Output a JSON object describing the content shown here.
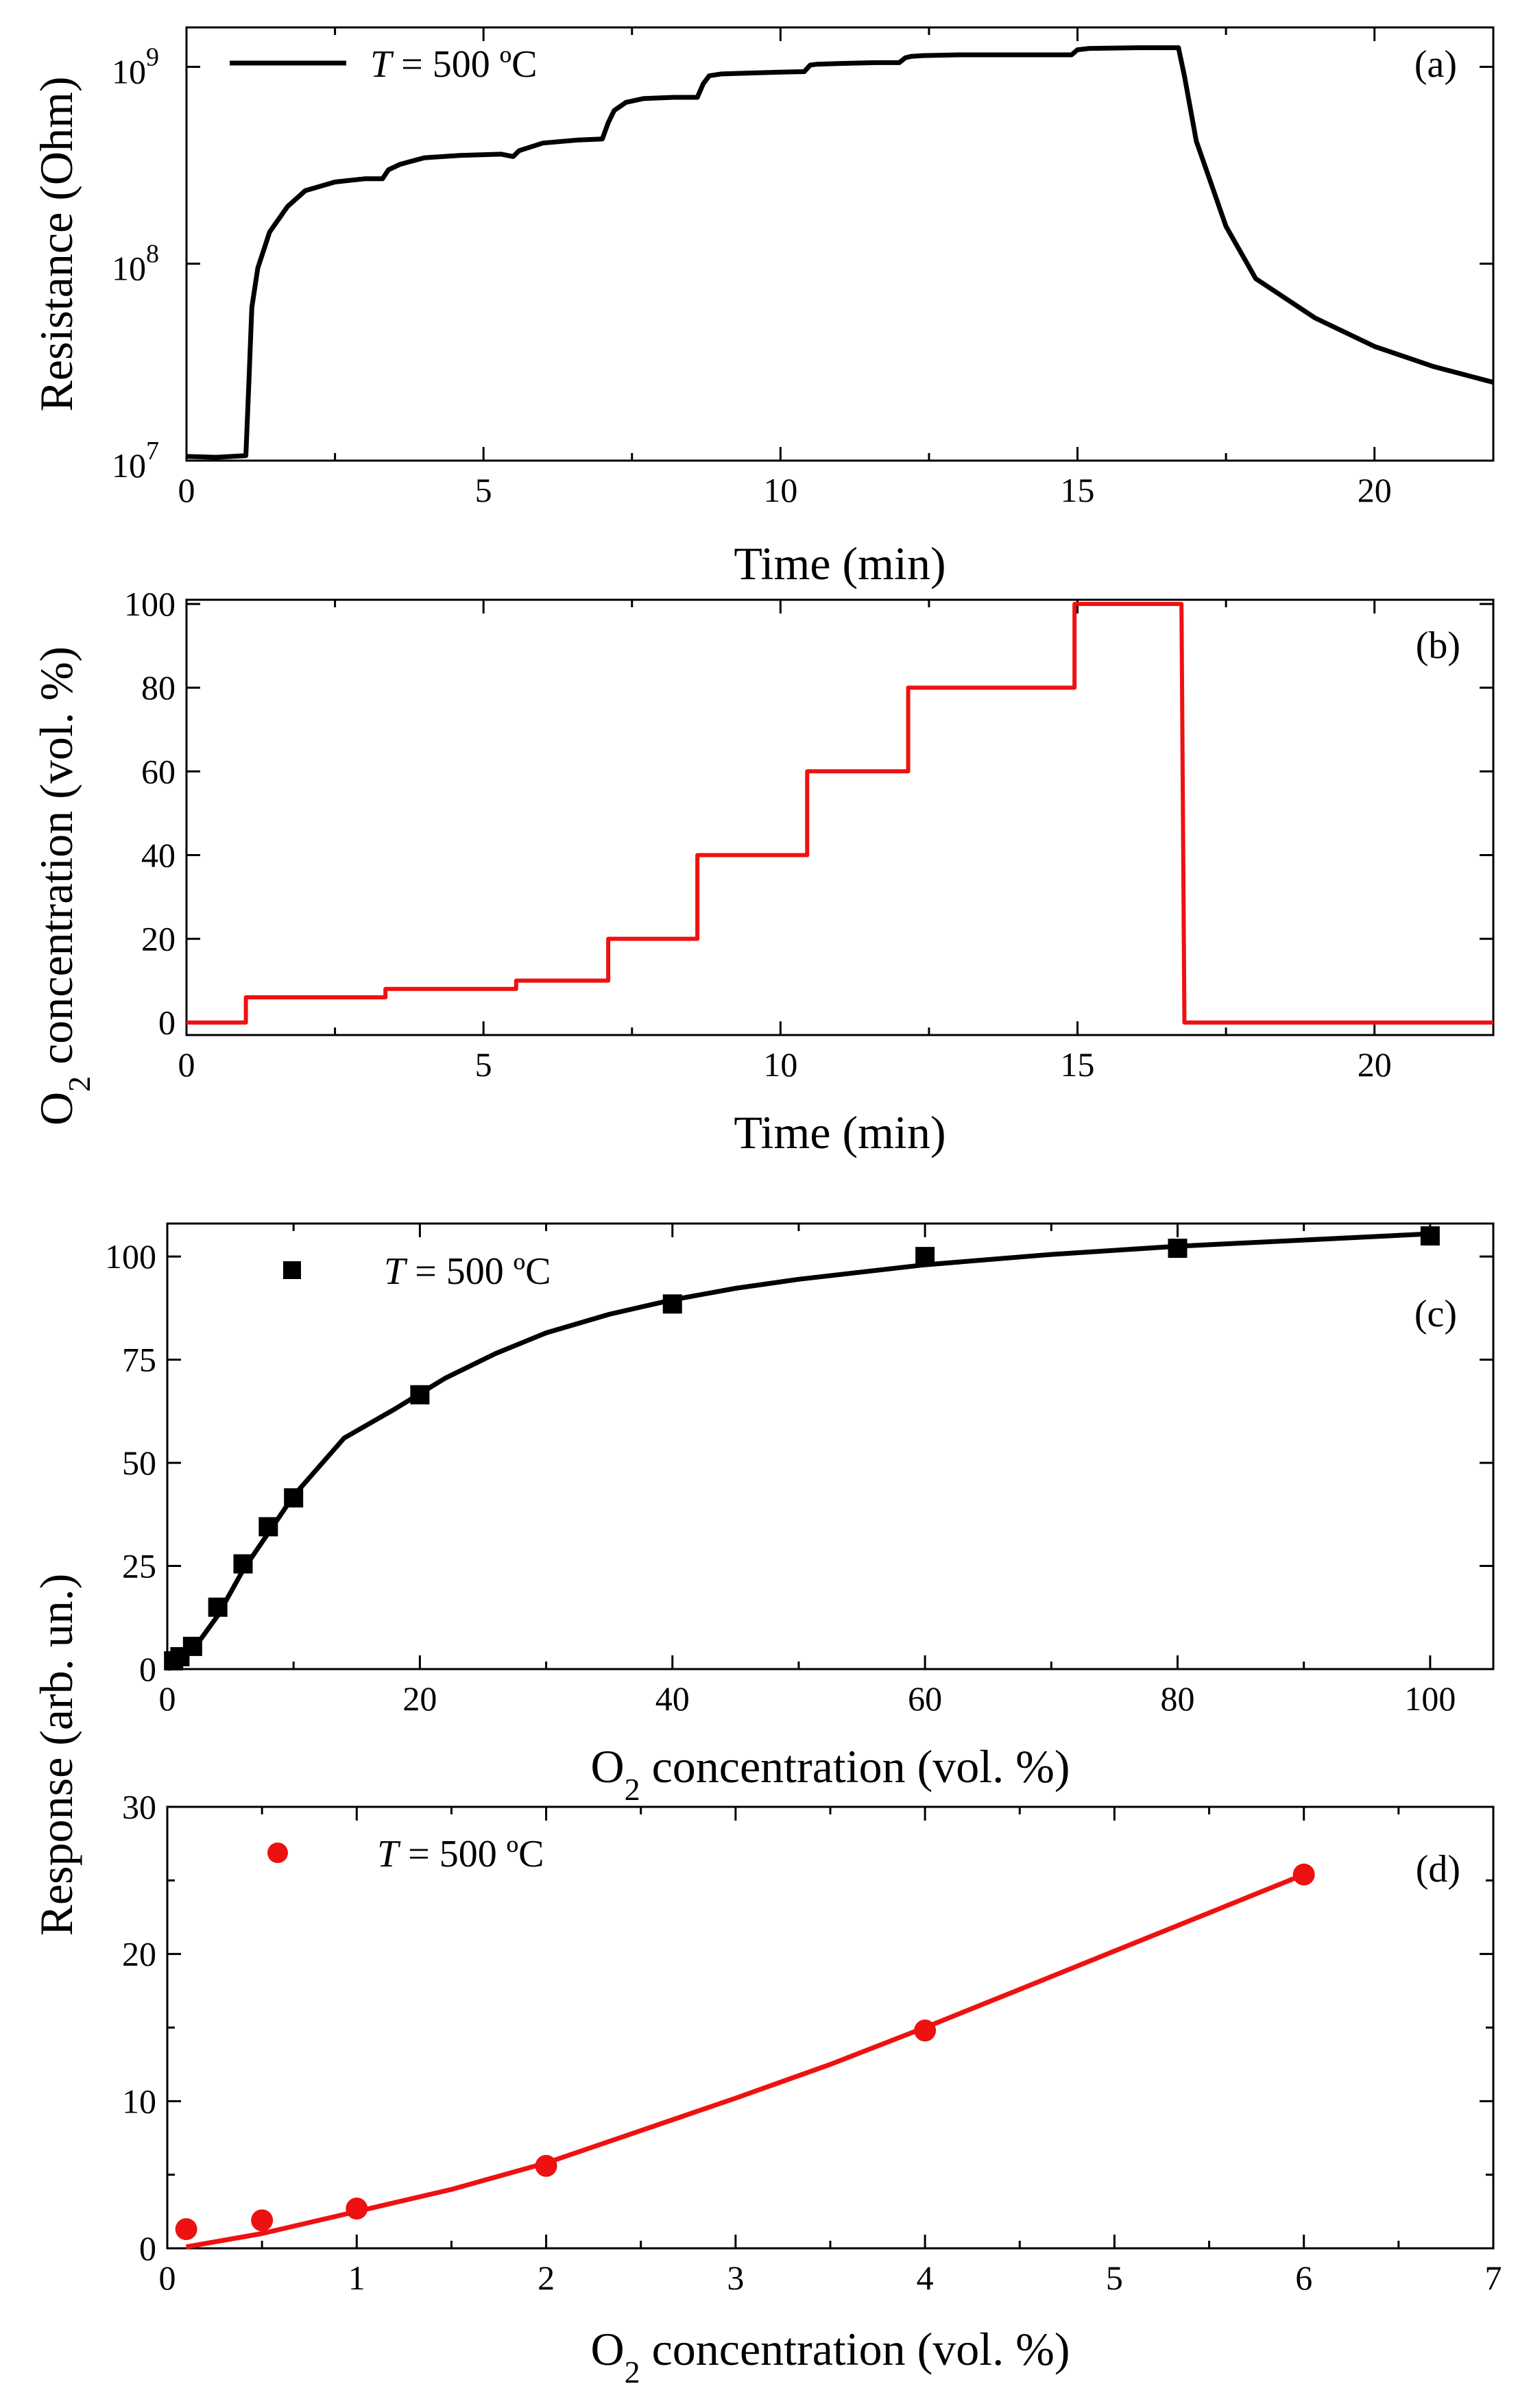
{
  "figure": {
    "legend_temperature": "T = 500 ºC",
    "legend_T": "T",
    "legend_rest": " = 500 ºC"
  },
  "chart_data": [
    {
      "id": "a",
      "type": "line",
      "panel_label": "(a)",
      "xlabel": "Time (min)",
      "ylabel": "Resistance (Ohm)",
      "yscale": "log",
      "xlim": [
        0,
        22
      ],
      "ylim_exp": [
        7,
        9.2
      ],
      "x_ticks": [
        0,
        5,
        10,
        15,
        20
      ],
      "y_ticks_exp": [
        7,
        8,
        9
      ],
      "y_tick_labels": [
        "10",
        "10",
        "10"
      ],
      "y_tick_sups": [
        "7",
        "8",
        "9"
      ],
      "line_color": "#000000",
      "series": [
        {
          "name": "T = 500 ºC",
          "x": [
            0,
            0.5,
            1.0,
            1.05,
            1.1,
            1.2,
            1.4,
            1.7,
            2.0,
            2.5,
            3.0,
            3.3,
            3.4,
            3.6,
            4.0,
            4.6,
            5.3,
            5.5,
            5.6,
            6.0,
            6.6,
            7.0,
            7.1,
            7.2,
            7.4,
            7.7,
            8.2,
            8.6,
            8.7,
            8.8,
            9.0,
            9.5,
            10.0,
            10.4,
            10.5,
            10.6,
            11.0,
            11.6,
            12.0,
            12.1,
            12.2,
            12.4,
            13.0,
            14.0,
            14.9,
            15.0,
            15.2,
            16.0,
            16.7,
            16.8,
            17.0,
            17.5,
            18.0,
            19.0,
            20.0,
            21.0,
            22.0
          ],
          "y": [
            10500000,
            10400000,
            10600000,
            25000000,
            60000000,
            95000000,
            145000000,
            195000000,
            235000000,
            260000000,
            270000000,
            270000000,
            300000000,
            320000000,
            345000000,
            355000000,
            360000000,
            350000000,
            375000000,
            410000000,
            425000000,
            430000000,
            520000000,
            600000000,
            660000000,
            690000000,
            700000000,
            700000000,
            820000000,
            900000000,
            920000000,
            930000000,
            940000000,
            945000000,
            1020000000,
            1030000000,
            1040000000,
            1050000000,
            1050000000,
            1110000000,
            1130000000,
            1140000000,
            1150000000,
            1150000000,
            1150000000,
            1220000000,
            1240000000,
            1250000000,
            1250000000,
            900000000,
            420000000,
            155000000,
            84000000,
            53000000,
            38000000,
            30000000,
            25000000
          ]
        }
      ]
    },
    {
      "id": "b",
      "type": "line",
      "panel_label": "(b)",
      "xlabel": "Time (min)",
      "ylabel_pre": "O",
      "ylabel_sub": "2",
      "ylabel_post": " concentration (vol. %)",
      "xlim": [
        0,
        22
      ],
      "ylim": [
        -3,
        101
      ],
      "x_ticks": [
        0,
        5,
        10,
        15,
        20
      ],
      "y_ticks": [
        0,
        20,
        40,
        60,
        80,
        100
      ],
      "line_color": "#ee1111",
      "series": [
        {
          "name": "O2 concentration",
          "x": [
            0,
            1.0,
            1.0,
            3.35,
            3.35,
            5.55,
            5.55,
            7.1,
            7.1,
            8.6,
            8.6,
            10.45,
            10.45,
            12.15,
            12.15,
            14.95,
            14.95,
            16.75,
            16.8,
            22
          ],
          "y": [
            0,
            0,
            6,
            6,
            8,
            8,
            10,
            10,
            20,
            20,
            40,
            40,
            60,
            60,
            80,
            80,
            100,
            100,
            0,
            0
          ]
        }
      ]
    },
    {
      "id": "c",
      "type": "scatter",
      "panel_label": "(c)",
      "xlabel_pre": "O",
      "xlabel_sub": "2",
      "xlabel_post": " concentration (vol. %)",
      "ylabel": "Response (arb. un.)",
      "xlim": [
        0,
        105
      ],
      "ylim": [
        0,
        108
      ],
      "x_ticks": [
        0,
        20,
        40,
        60,
        80,
        100
      ],
      "y_ticks": [
        0,
        25,
        50,
        75,
        100
      ],
      "color": "#000000",
      "marker": "square",
      "series": [
        {
          "name": "T = 500 ºC",
          "x": [
            0.5,
            1,
            2,
            4,
            6,
            8,
            10,
            20,
            40,
            60,
            80,
            100
          ],
          "y": [
            2,
            3,
            5.5,
            15,
            25.5,
            34.5,
            41.5,
            66.5,
            88.5,
            100,
            102,
            105
          ]
        }
      ],
      "fit": {
        "x": [
          0,
          2,
          4,
          6,
          8,
          10,
          14,
          18,
          22,
          26,
          30,
          35,
          40,
          45,
          50,
          60,
          70,
          80,
          90,
          100
        ],
        "y": [
          0,
          4.5,
          13,
          24,
          33,
          42,
          56,
          63,
          70.5,
          76.5,
          81.5,
          86,
          89.5,
          92.3,
          94.5,
          98,
          100.5,
          102.5,
          104,
          105.5
        ]
      }
    },
    {
      "id": "d",
      "type": "scatter",
      "panel_label": "(d)",
      "xlabel_pre": "O",
      "xlabel_sub": "2",
      "xlabel_post": " concentration (vol. %)",
      "ylabel": "",
      "xlim": [
        0,
        7
      ],
      "ylim": [
        0,
        30
      ],
      "x_ticks": [
        0,
        1,
        2,
        3,
        4,
        5,
        6,
        7
      ],
      "y_ticks": [
        0,
        10,
        20,
        30
      ],
      "color": "#ee1111",
      "marker": "circle",
      "series": [
        {
          "name": "T = 500 ºC",
          "x": [
            0.1,
            0.5,
            1,
            2,
            4,
            6
          ],
          "y": [
            1.3,
            1.9,
            2.7,
            5.6,
            14.8,
            25.4
          ]
        }
      ],
      "fit": {
        "x": [
          0.1,
          0.5,
          1,
          1.5,
          2,
          2.5,
          3,
          3.5,
          4,
          4.5,
          5,
          5.5,
          6
        ],
        "y": [
          0.1,
          1.0,
          2.5,
          4.0,
          5.8,
          8.0,
          10.2,
          12.5,
          15.0,
          17.6,
          20.2,
          22.8,
          25.4
        ]
      }
    }
  ]
}
